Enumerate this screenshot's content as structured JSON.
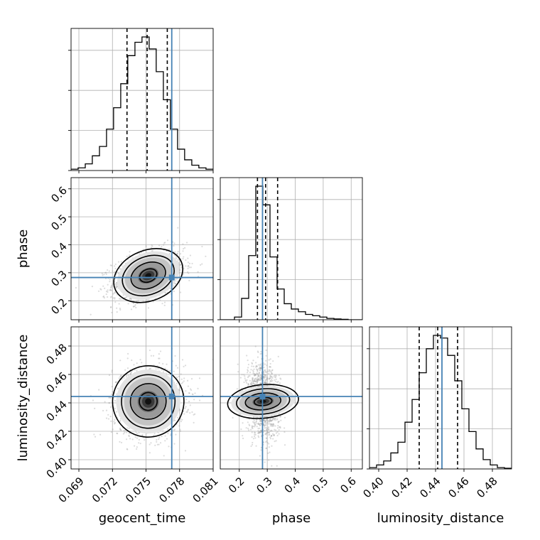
{
  "chart_data": {
    "type": "corner",
    "parameters": [
      "geocent_time",
      "phase",
      "luminosity_distance"
    ],
    "axis_labels": {
      "geocent_time": "geocent_time",
      "phase": "phase",
      "luminosity_distance": "luminosity_distance"
    },
    "ranges": {
      "geocent_time": [
        0.0683,
        0.081
      ],
      "phase": [
        0.132,
        0.64
      ],
      "luminosity_distance": [
        0.3935,
        0.4935
      ]
    },
    "ticks": {
      "geocent_time": {
        "values": [
          0.069,
          0.072,
          0.075,
          0.078,
          0.081
        ],
        "labels": [
          "0.069",
          "0.072",
          "0.075",
          "0.078",
          "0.081"
        ]
      },
      "phase": {
        "values": [
          0.2,
          0.3,
          0.4,
          0.5,
          0.6
        ],
        "labels": [
          "0.2",
          "0.3",
          "0.4",
          "0.5",
          "0.6"
        ]
      },
      "luminosity_distance": {
        "values": [
          0.4,
          0.42,
          0.44,
          0.46,
          0.48
        ],
        "labels": [
          "0.40",
          "0.42",
          "0.44",
          "0.46",
          "0.48"
        ]
      }
    },
    "truths": {
      "geocent_time": 0.0773,
      "phase": 0.283,
      "luminosity_distance": 0.4445
    },
    "quantiles": {
      "geocent_time": [
        0.0733,
        0.0751,
        0.0769
      ],
      "phase": [
        0.265,
        0.294,
        0.337
      ],
      "luminosity_distance": [
        0.4285,
        0.4415,
        0.4555
      ]
    },
    "histograms": {
      "geocent_time": {
        "bin_edges": [
          0.0683,
          0.06893,
          0.06957,
          0.0702,
          0.07084,
          0.07147,
          0.0721,
          0.07274,
          0.07337,
          0.07401,
          0.07464,
          0.07528,
          0.07591,
          0.07655,
          0.07718,
          0.07782,
          0.07845,
          0.07909,
          0.07972,
          0.08036,
          0.081
        ],
        "counts": [
          1,
          2,
          5,
          11,
          18,
          31,
          47,
          65,
          86,
          96,
          100,
          91,
          74,
          53,
          31,
          16,
          8,
          4,
          2,
          1
        ]
      },
      "phase": {
        "bin_edges": [
          0.132,
          0.1574,
          0.1828,
          0.2082,
          0.2336,
          0.259,
          0.2844,
          0.3098,
          0.3352,
          0.3606,
          0.386,
          0.4114,
          0.4368,
          0.4622,
          0.4876,
          0.513,
          0.5384,
          0.5638,
          0.5892,
          0.6146,
          0.64
        ],
        "counts": [
          0,
          0,
          2,
          16,
          48,
          100,
          86,
          47,
          23,
          12,
          8,
          6,
          4,
          3,
          2,
          1,
          0.6,
          0.3,
          0,
          0
        ]
      },
      "luminosity_distance": {
        "bin_edges": [
          0.3935,
          0.3985,
          0.4035,
          0.4085,
          0.4135,
          0.4185,
          0.4235,
          0.4285,
          0.4335,
          0.4385,
          0.4435,
          0.4485,
          0.4535,
          0.4585,
          0.4635,
          0.4685,
          0.4735,
          0.4785,
          0.4835,
          0.4885,
          0.4935
        ],
        "counts": [
          1,
          3,
          6,
          12,
          20,
          35,
          52,
          72,
          90,
          100,
          98,
          85,
          66,
          45,
          28,
          15,
          7,
          3,
          1,
          0.5
        ]
      }
    },
    "density_2d": [
      {
        "x": "geocent_time",
        "y": "phase",
        "mean": [
          0.0752,
          0.29
        ],
        "sd": [
          0.0016,
          0.045
        ],
        "corr": 0.35
      },
      {
        "x": "geocent_time",
        "y": "luminosity_distance",
        "mean": [
          0.0752,
          0.441
        ],
        "sd": [
          0.0016,
          0.0125
        ],
        "corr": 0.05
      },
      {
        "x": "phase",
        "y": "luminosity_distance",
        "mean": [
          0.285,
          0.441
        ],
        "sd": [
          0.03,
          0.0125
        ],
        "corr": -0.15
      }
    ],
    "contour_levels_sigma": [
      0.5,
      1.0,
      1.5,
      2.0
    ],
    "grid": true,
    "truth_color": "#4682b4",
    "hist_color": "#000000",
    "scatter_color": "#9a9a9a"
  }
}
